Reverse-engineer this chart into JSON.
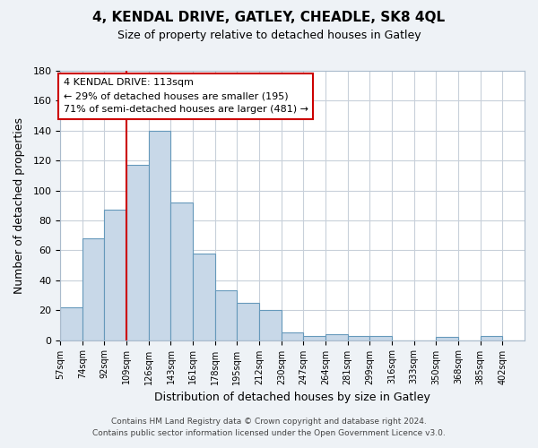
{
  "title": "4, KENDAL DRIVE, GATLEY, CHEADLE, SK8 4QL",
  "subtitle": "Size of property relative to detached houses in Gatley",
  "xlabel": "Distribution of detached houses by size in Gatley",
  "ylabel": "Number of detached properties",
  "bar_labels": [
    "57sqm",
    "74sqm",
    "92sqm",
    "109sqm",
    "126sqm",
    "143sqm",
    "161sqm",
    "178sqm",
    "195sqm",
    "212sqm",
    "230sqm",
    "247sqm",
    "264sqm",
    "281sqm",
    "299sqm",
    "316sqm",
    "333sqm",
    "350sqm",
    "368sqm",
    "385sqm",
    "402sqm"
  ],
  "bar_values": [
    22,
    68,
    87,
    117,
    140,
    92,
    58,
    33,
    25,
    20,
    5,
    3,
    4,
    3,
    3,
    0,
    0,
    2,
    0,
    3,
    0
  ],
  "bar_color": "#c8d8e8",
  "bar_edge_color": "#6699bb",
  "vline_x": 3,
  "vline_color": "#cc0000",
  "annotation_text": "4 KENDAL DRIVE: 113sqm\n← 29% of detached houses are smaller (195)\n71% of semi-detached houses are larger (481) →",
  "annotation_box_color": "#ffffff",
  "annotation_box_edge": "#cc0000",
  "ylim": [
    0,
    180
  ],
  "yticks": [
    0,
    20,
    40,
    60,
    80,
    100,
    120,
    140,
    160,
    180
  ],
  "footer_line1": "Contains HM Land Registry data © Crown copyright and database right 2024.",
  "footer_line2": "Contains public sector information licensed under the Open Government Licence v3.0.",
  "bg_color": "#eef2f6",
  "plot_bg_color": "#ffffff",
  "grid_color": "#c8d0da"
}
